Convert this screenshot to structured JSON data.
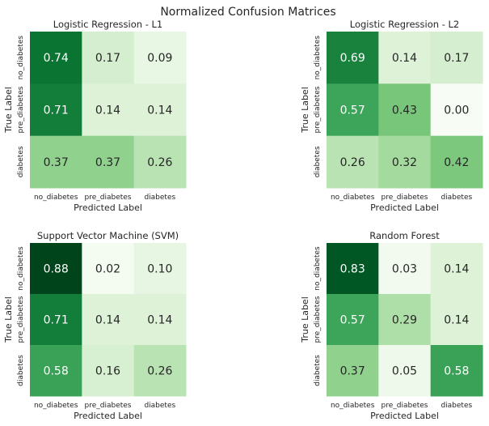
{
  "figure": {
    "title": "Normalized Confusion Matrices"
  },
  "colors": {
    "scale_low": "#f7fcf5",
    "scale_mid": "#74c476",
    "scale_high": "#00441b",
    "text_dark": "#262626",
    "text_light": "#ffffff"
  },
  "chart_data": [
    {
      "type": "heatmap",
      "title": "Logistic Regression - L1",
      "xlabel": "Predicted Label",
      "ylabel": "True Label",
      "x_categories": [
        "no_diabetes",
        "pre_diabetes",
        "diabetes"
      ],
      "y_categories": [
        "no_diabetes",
        "pre_diabetes",
        "diabetes"
      ],
      "values": [
        [
          0.74,
          0.17,
          0.09
        ],
        [
          0.71,
          0.14,
          0.14
        ],
        [
          0.37,
          0.37,
          0.26
        ]
      ],
      "vmin": 0,
      "vmax": 0.88
    },
    {
      "type": "heatmap",
      "title": "Logistic Regression - L2",
      "xlabel": "Predicted Label",
      "ylabel": "True Label",
      "x_categories": [
        "no_diabetes",
        "pre_diabetes",
        "diabetes"
      ],
      "y_categories": [
        "no_diabetes",
        "pre_diabetes",
        "diabetes"
      ],
      "values": [
        [
          0.69,
          0.14,
          0.17
        ],
        [
          0.57,
          0.43,
          0.0
        ],
        [
          0.26,
          0.32,
          0.42
        ]
      ],
      "vmin": 0,
      "vmax": 0.88
    },
    {
      "type": "heatmap",
      "title": "Support Vector Machine (SVM)",
      "xlabel": "Predicted Label",
      "ylabel": "True Label",
      "x_categories": [
        "no_diabetes",
        "pre_diabetes",
        "diabetes"
      ],
      "y_categories": [
        "no_diabetes",
        "pre_diabetes",
        "diabetes"
      ],
      "values": [
        [
          0.88,
          0.02,
          0.1
        ],
        [
          0.71,
          0.14,
          0.14
        ],
        [
          0.58,
          0.16,
          0.26
        ]
      ],
      "vmin": 0,
      "vmax": 0.88
    },
    {
      "type": "heatmap",
      "title": "Random Forest",
      "xlabel": "Predicted Label",
      "ylabel": "True Label",
      "x_categories": [
        "no_diabetes",
        "pre_diabetes",
        "diabetes"
      ],
      "y_categories": [
        "no_diabetes",
        "pre_diabetes",
        "diabetes"
      ],
      "values": [
        [
          0.83,
          0.03,
          0.14
        ],
        [
          0.57,
          0.29,
          0.14
        ],
        [
          0.37,
          0.05,
          0.58
        ]
      ],
      "vmin": 0,
      "vmax": 0.88
    }
  ]
}
